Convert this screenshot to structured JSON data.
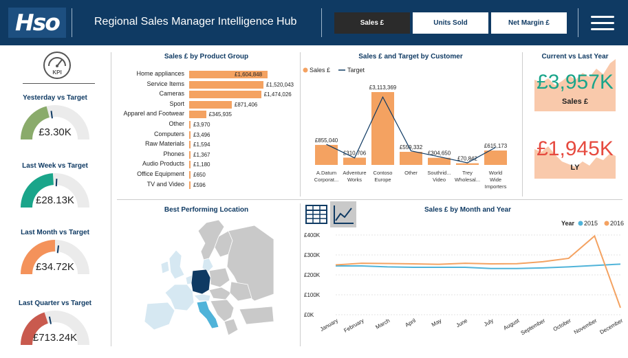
{
  "header": {
    "logo": "Hso",
    "title": "Regional Sales Manager Intelligence Hub",
    "tabs": [
      {
        "label": "Sales £",
        "active": true
      },
      {
        "label": "Units Sold",
        "active": false
      },
      {
        "label": "Net Margin £",
        "active": false
      }
    ]
  },
  "kpi_icon": {
    "label": "KPI"
  },
  "gauges": [
    {
      "title": "Yesterday vs Target",
      "value": "£3.30K",
      "fill": 0.42,
      "color": "#8aab6b"
    },
    {
      "title": "Last Week vs Target",
      "value": "£28.13K",
      "fill": 0.48,
      "color": "#1aa58a"
    },
    {
      "title": "Last Month vs Target",
      "value": "£34.72K",
      "fill": 0.5,
      "color": "#f4925a"
    },
    {
      "title": "Last Quarter vs Target",
      "value": "£713.24K",
      "fill": 0.4,
      "color": "#c95a4e"
    }
  ],
  "product_groups": {
    "title": "Sales £ by Product Group",
    "items": [
      {
        "label": "Home appliances",
        "value": 1604848,
        "display": "£1,604,848"
      },
      {
        "label": "Service Items",
        "value": 1520043,
        "display": "£1,520,043"
      },
      {
        "label": "Cameras",
        "value": 1474026,
        "display": "£1,474,026"
      },
      {
        "label": "Sport",
        "value": 871406,
        "display": "£871,406"
      },
      {
        "label": "Apparel and Footwear",
        "value": 345935,
        "display": "£345,935"
      },
      {
        "label": "Other",
        "value": 3970,
        "display": "£3,970"
      },
      {
        "label": "Computers",
        "value": 3496,
        "display": "£3,496"
      },
      {
        "label": "Raw Materials",
        "value": 1594,
        "display": "£1,594"
      },
      {
        "label": "Phones",
        "value": 1367,
        "display": "£1,367"
      },
      {
        "label": "Audio Products",
        "value": 1180,
        "display": "£1,180"
      },
      {
        "label": "Office Equipment",
        "value": 650,
        "display": "£650"
      },
      {
        "label": "TV and Video",
        "value": 596,
        "display": "£596"
      }
    ]
  },
  "customers": {
    "title": "Sales £ and Target by Customer",
    "legend": {
      "bar": "Sales £",
      "line": "Target"
    },
    "categories": [
      "A.Datum Corporat...",
      "Adventure Works",
      "Contoso Europe",
      "Other",
      "Southrid... Video",
      "Trey Wholesal...",
      "World Wide Importers"
    ],
    "values": [
      855040,
      310706,
      3113369,
      559332,
      304650,
      70842,
      615173
    ],
    "displays": [
      "£855,040",
      "£310,706",
      "£3,113,369",
      "£559,332",
      "£304,650",
      "£70,842",
      "£615,173"
    ],
    "target": [
      880000,
      300000,
      2900000,
      600000,
      350000,
      90000,
      750000
    ]
  },
  "current_vs_ly": {
    "title": "Current vs Last Year",
    "current_value": "£3,957K",
    "current_label": "Sales £",
    "ly_value": "£1,945K",
    "ly_label": "LY"
  },
  "map": {
    "title": "Best Performing Location"
  },
  "monthly": {
    "title": "Sales £ by Month and Year",
    "legend_title": "Year",
    "months": [
      "January",
      "February",
      "March",
      "April",
      "May",
      "June",
      "July",
      "August",
      "September",
      "October",
      "November",
      "December"
    ],
    "yticks": [
      "£0K",
      "£100K",
      "£200K",
      "£300K",
      "£400K"
    ],
    "series": [
      {
        "name": "2015",
        "color": "#4fb3d9",
        "values": [
          245000,
          245000,
          240000,
          238000,
          238000,
          238000,
          232000,
          232000,
          235000,
          240000,
          247000,
          254000
        ]
      },
      {
        "name": "2016",
        "color": "#f4a261",
        "values": [
          250000,
          258000,
          257000,
          255000,
          253000,
          258000,
          255000,
          256000,
          266000,
          283000,
          395000,
          35000
        ]
      }
    ]
  },
  "view_buttons": [
    "table-view",
    "line-chart-view"
  ],
  "chart_data": [
    {
      "type": "bar",
      "title": "Sales £ by Product Group",
      "categories": [
        "Home appliances",
        "Service Items",
        "Cameras",
        "Sport",
        "Apparel and Footwear",
        "Other",
        "Computers",
        "Raw Materials",
        "Phones",
        "Audio Products",
        "Office Equipment",
        "TV and Video"
      ],
      "values": [
        1604848,
        1520043,
        1474026,
        871406,
        345935,
        3970,
        3496,
        1594,
        1367,
        1180,
        650,
        596
      ]
    },
    {
      "type": "bar",
      "title": "Sales £ and Target by Customer",
      "categories": [
        "A.Datum Corporat...",
        "Adventure Works",
        "Contoso Europe",
        "Other",
        "Southrid... Video",
        "Trey Wholesal...",
        "World Wide Importers"
      ],
      "series": [
        {
          "name": "Sales £",
          "values": [
            855040,
            310706,
            3113369,
            559332,
            304650,
            70842,
            615173
          ]
        },
        {
          "name": "Target",
          "values": [
            880000,
            300000,
            2900000,
            600000,
            350000,
            90000,
            750000
          ]
        }
      ]
    },
    {
      "type": "line",
      "title": "Sales £ by Month and Year",
      "x": [
        "January",
        "February",
        "March",
        "April",
        "May",
        "June",
        "July",
        "August",
        "September",
        "October",
        "November",
        "December"
      ],
      "ylim": [
        0,
        400000
      ],
      "series": [
        {
          "name": "2015",
          "values": [
            245000,
            245000,
            240000,
            238000,
            238000,
            238000,
            232000,
            232000,
            235000,
            240000,
            247000,
            254000
          ]
        },
        {
          "name": "2016",
          "values": [
            250000,
            258000,
            257000,
            255000,
            253000,
            258000,
            255000,
            256000,
            266000,
            283000,
            395000,
            35000
          ]
        }
      ]
    }
  ]
}
